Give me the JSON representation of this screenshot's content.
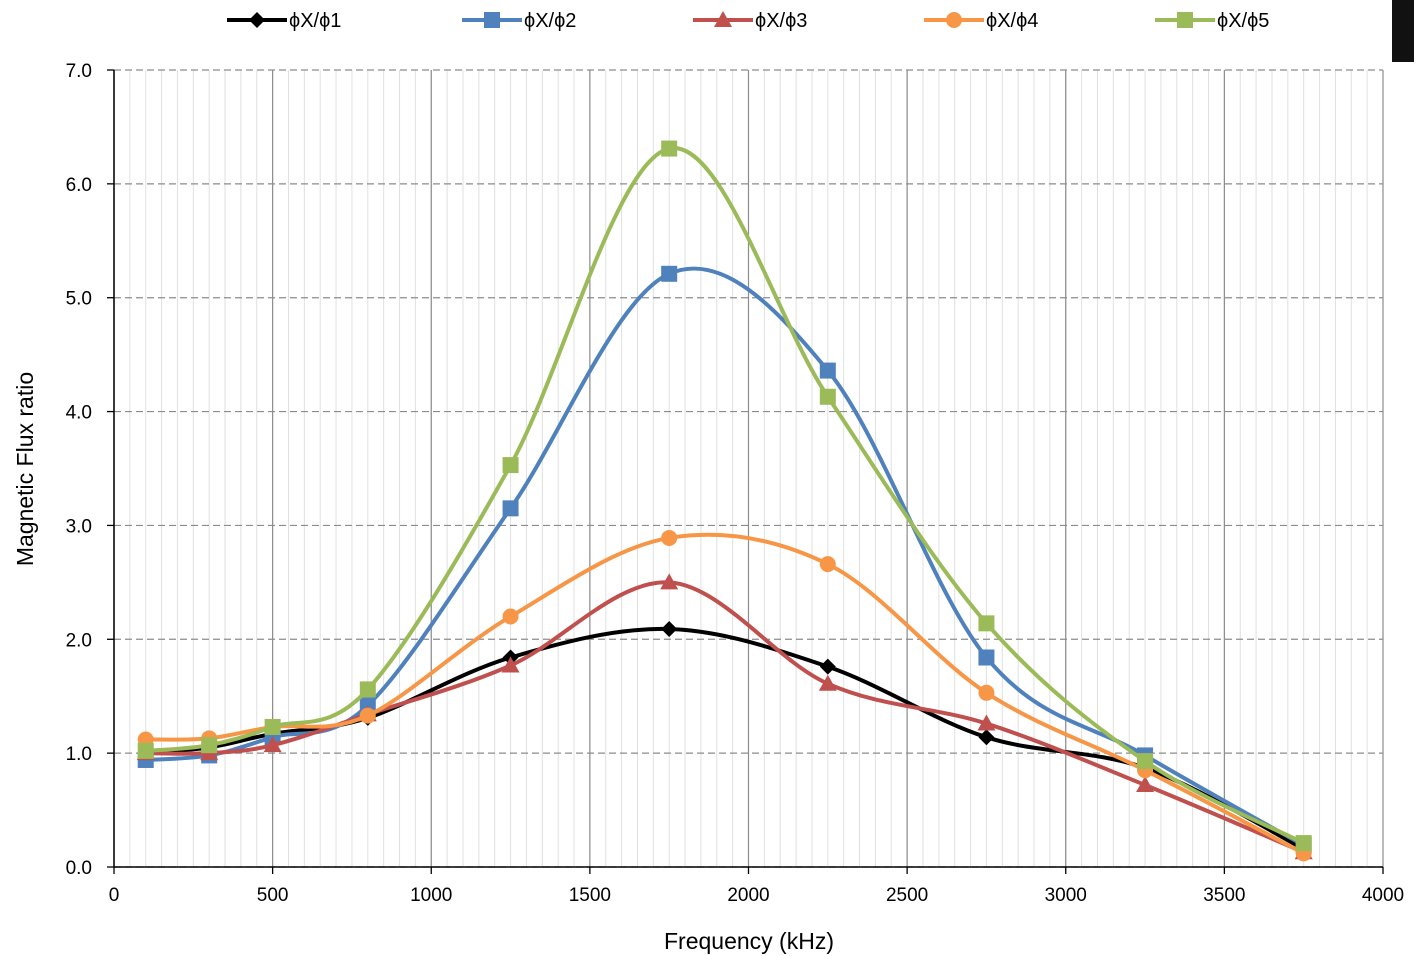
{
  "chart_data": {
    "type": "line",
    "xlabel": "Frequency (kHz)",
    "ylabel": "Magnetic Flux ratio",
    "xlim": [
      0,
      4000
    ],
    "ylim": [
      0,
      7
    ],
    "xticks": [
      "0",
      "500",
      "1000",
      "1500",
      "2000",
      "2500",
      "3000",
      "3500",
      "4000"
    ],
    "yticks": [
      "0.0",
      "1.0",
      "2.0",
      "3.0",
      "4.0",
      "5.0",
      "6.0",
      "7.0"
    ],
    "grid": true,
    "smooth": true,
    "legend_position": "top",
    "x": [
      100,
      300,
      500,
      800,
      1250,
      1750,
      2250,
      2750,
      3250,
      3750
    ],
    "series": [
      {
        "name": "ϕX/ϕ1",
        "color": "#000000",
        "marker": "diamond",
        "values": [
          1.0,
          1.05,
          1.17,
          1.31,
          1.84,
          2.09,
          1.76,
          1.14,
          0.87,
          0.16
        ]
      },
      {
        "name": "ϕX/ϕ2",
        "color": "#4f81bd",
        "marker": "square",
        "values": [
          0.94,
          0.98,
          1.14,
          1.42,
          3.15,
          5.21,
          4.36,
          1.84,
          0.98,
          0.19
        ]
      },
      {
        "name": "ϕX/ϕ3",
        "color": "#c0504d",
        "marker": "triangle",
        "values": [
          1.0,
          1.0,
          1.07,
          1.34,
          1.77,
          2.5,
          1.61,
          1.26,
          0.72,
          0.13
        ]
      },
      {
        "name": "ϕX/ϕ4",
        "color": "#f79646",
        "marker": "circle",
        "values": [
          1.12,
          1.13,
          1.23,
          1.33,
          2.2,
          2.89,
          2.66,
          1.53,
          0.85,
          0.12
        ]
      },
      {
        "name": "ϕX/ϕ5",
        "color": "#9bbb59",
        "marker": "square",
        "values": [
          1.02,
          1.07,
          1.23,
          1.56,
          3.53,
          6.31,
          4.13,
          2.14,
          0.93,
          0.21
        ]
      }
    ]
  }
}
